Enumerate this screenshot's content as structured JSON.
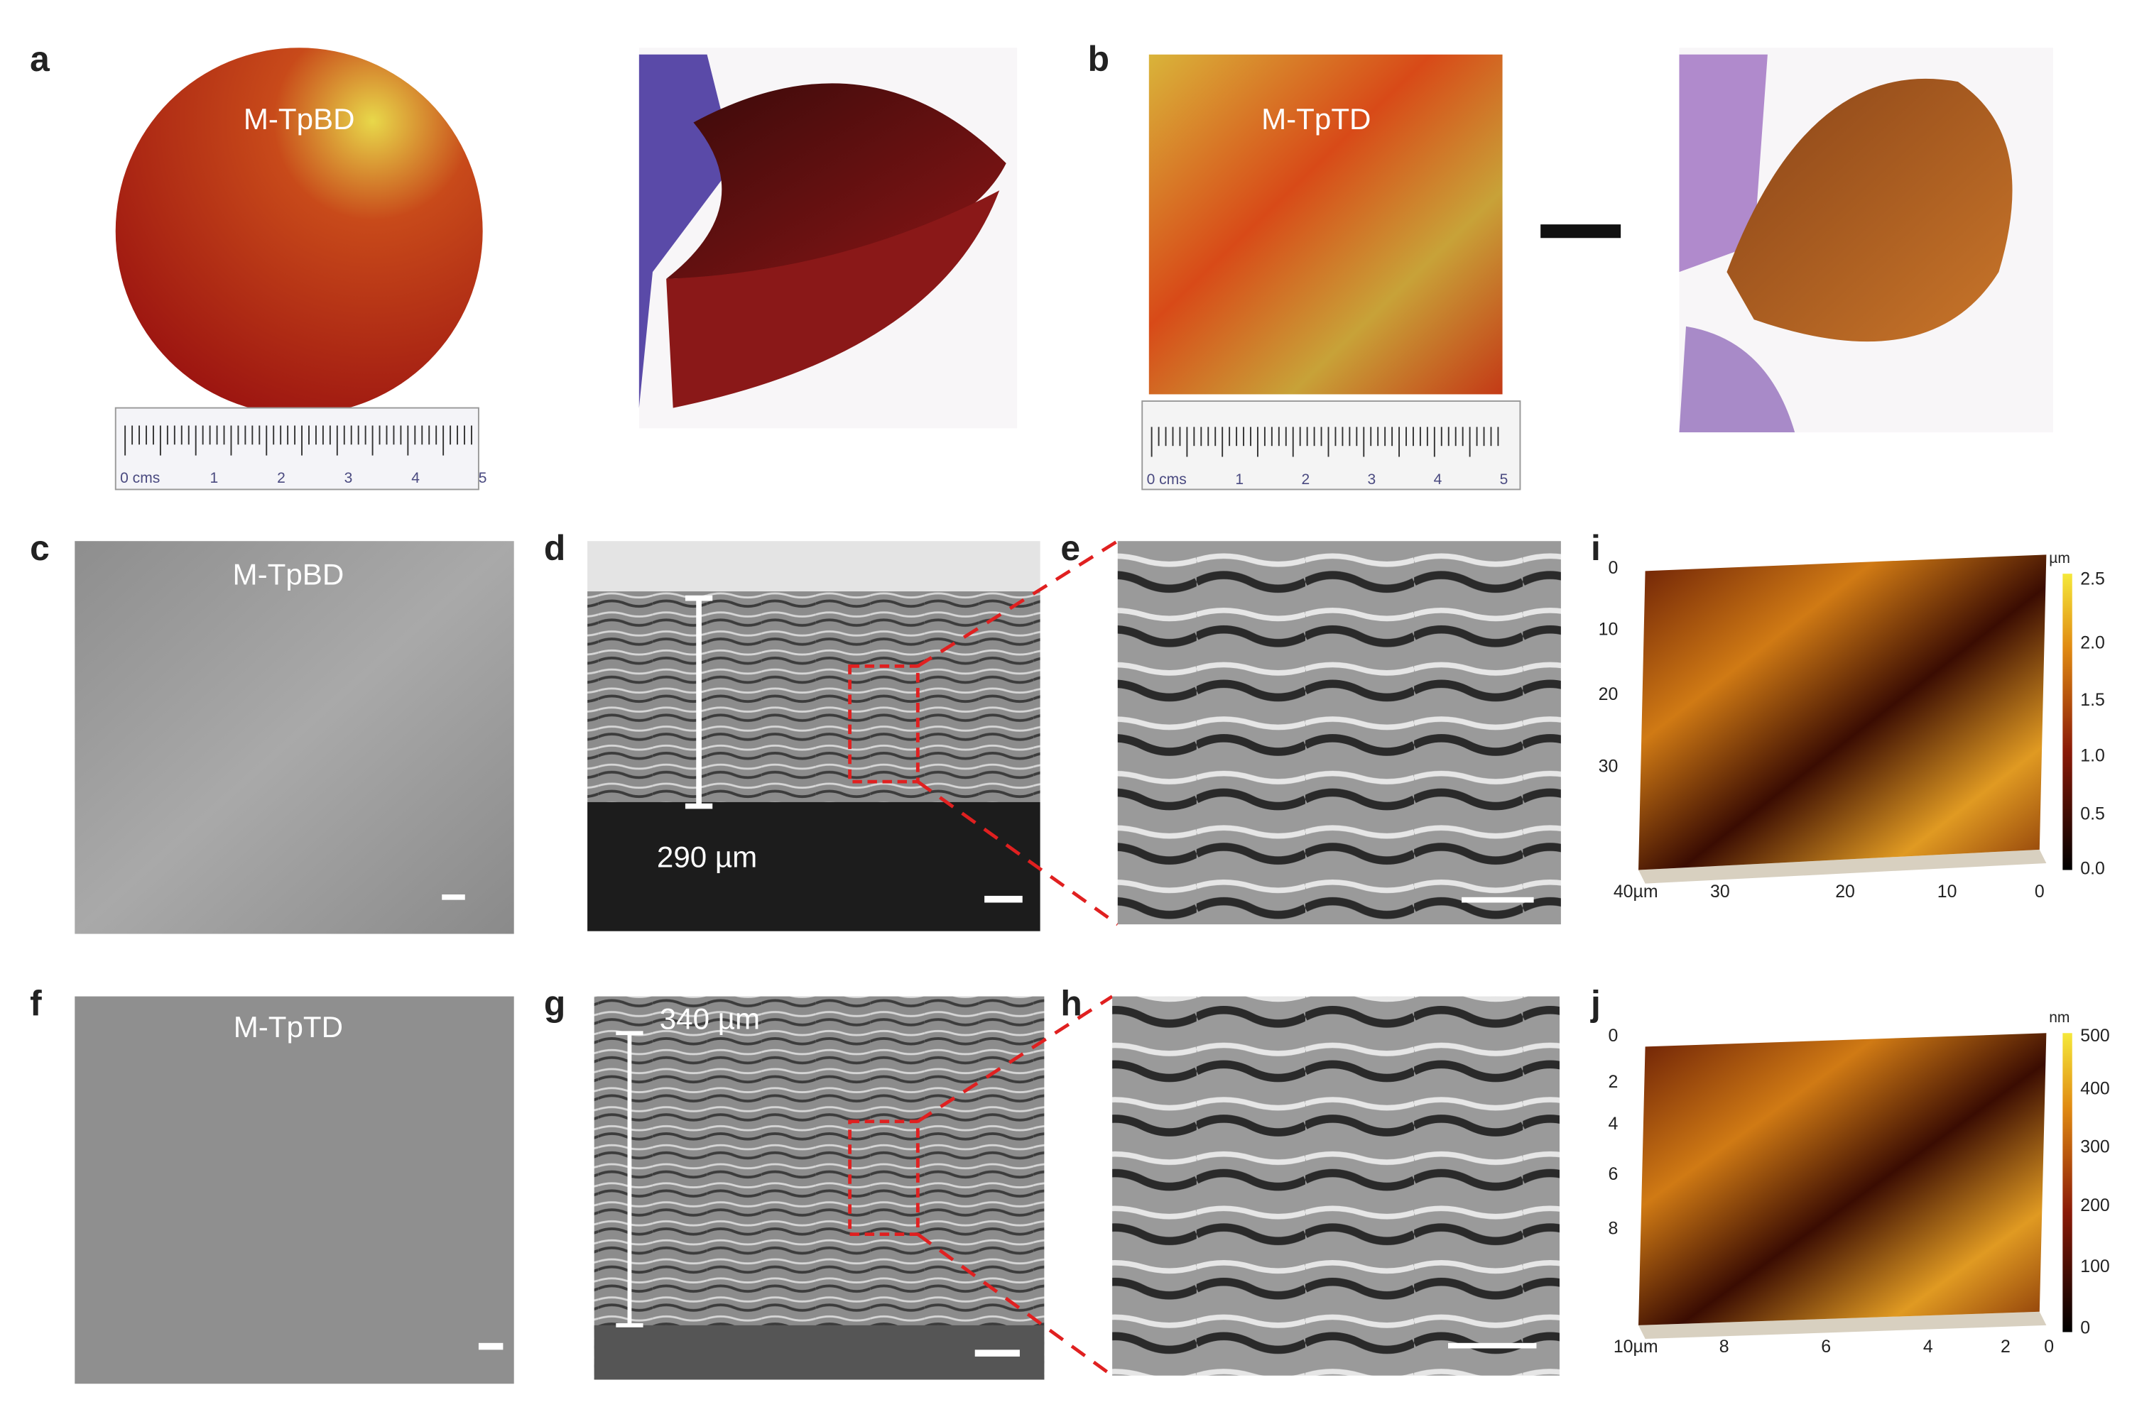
{
  "panels": {
    "a": {
      "label": "a",
      "sample": "M-TpBD",
      "ruler": [
        "0 cms",
        "1",
        "2",
        "3",
        "4",
        "5"
      ]
    },
    "b": {
      "label": "b",
      "sample": "M-TpTD",
      "ruler": [
        "0 cms",
        "1",
        "2",
        "3",
        "4",
        "5"
      ]
    },
    "c": {
      "label": "c",
      "sample": "M-TpBD"
    },
    "d": {
      "label": "d",
      "thickness": "290 µm"
    },
    "e": {
      "label": "e"
    },
    "f": {
      "label": "f",
      "sample": "M-TpTD"
    },
    "g": {
      "label": "g",
      "thickness": "340 µm"
    },
    "h": {
      "label": "h"
    },
    "i": {
      "label": "i",
      "y_ticks": [
        "0",
        "10",
        "20",
        "30"
      ],
      "x_ticks": [
        "40µm",
        "30",
        "20",
        "10",
        "0"
      ],
      "colorbar_unit": "µm",
      "colorbar_ticks": [
        "2.5",
        "2.0",
        "1.5",
        "1.0",
        "0.5",
        "0.0"
      ]
    },
    "j": {
      "label": "j",
      "y_ticks": [
        "0",
        "2",
        "4",
        "6",
        "8"
      ],
      "x_ticks": [
        "10µm",
        "8",
        "6",
        "4",
        "2",
        "0"
      ],
      "colorbar_unit": "nm",
      "colorbar_ticks": [
        "500",
        "400",
        "300",
        "200",
        "100",
        "0"
      ]
    }
  }
}
